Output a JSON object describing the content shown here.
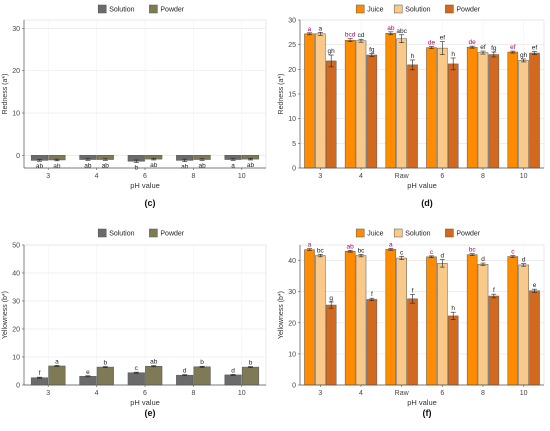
{
  "chart_data": [
    {
      "type": "bar",
      "panel_label": "(c)",
      "categories": [
        "3",
        "4",
        "6",
        "8",
        "10"
      ],
      "xlabel": "pH value",
      "ylabel": "Redness (a*)",
      "ylim": [
        -3,
        32
      ],
      "yticks": [
        0,
        10,
        20,
        30
      ],
      "grid": true,
      "legend_position": "top",
      "series": [
        {
          "name": "Solution",
          "color": "#6b6b6b",
          "values": [
            -1.2,
            -1.0,
            -1.4,
            -1.2,
            -1.0
          ],
          "errors": [
            0.2,
            0.2,
            0.3,
            0.3,
            0.2
          ],
          "letters": [
            "ab",
            "ab",
            "b",
            "ab",
            "a"
          ]
        },
        {
          "name": "Powder",
          "color": "#7d7a55",
          "values": [
            -1.1,
            -1.0,
            -0.9,
            -1.0,
            -0.9
          ],
          "errors": [
            0.2,
            0.2,
            0.2,
            0.2,
            0.2
          ],
          "letters": [
            "ab",
            "ab",
            "ab",
            "ab",
            "ab"
          ]
        }
      ]
    },
    {
      "type": "bar",
      "panel_label": "(d)",
      "categories": [
        "3",
        "4",
        "Raw",
        "6",
        "8",
        "10"
      ],
      "xlabel": "pH value",
      "ylabel": "Redness (a*)",
      "ylim": [
        0,
        30
      ],
      "yticks": [
        0,
        5,
        10,
        15,
        20,
        25,
        30
      ],
      "grid": true,
      "legend_position": "top",
      "series": [
        {
          "name": "Juice",
          "color": "#ff8c00",
          "values": [
            27.2,
            25.9,
            27.3,
            24.4,
            24.5,
            23.5
          ],
          "errors": [
            0.2,
            0.3,
            0.3,
            0.2,
            0.2,
            0.2
          ],
          "letters": [
            "a",
            "bcd",
            "ab",
            "de",
            "de",
            "ef"
          ]
        },
        {
          "name": "Solution",
          "color": "#f9c98a",
          "values": [
            27.2,
            25.8,
            26.2,
            24.3,
            23.4,
            21.8
          ],
          "errors": [
            0.3,
            0.3,
            0.8,
            1.3,
            0.3,
            0.3
          ],
          "letters": [
            "a",
            "cd",
            "abc",
            "ef",
            "ef",
            "gh"
          ]
        },
        {
          "name": "Powder",
          "color": "#d2691e",
          "values": [
            21.7,
            22.9,
            20.9,
            21.1,
            23.0,
            23.3
          ],
          "errors": [
            1.2,
            0.3,
            1.0,
            1.2,
            0.5,
            0.3
          ],
          "letters": [
            "gh",
            "fg",
            "h",
            "h",
            "fg",
            "ef"
          ]
        }
      ]
    },
    {
      "type": "bar",
      "panel_label": "(e)",
      "categories": [
        "3",
        "4",
        "6",
        "8",
        "10"
      ],
      "xlabel": "pH value",
      "ylabel": "Yellowness (b*)",
      "ylim": [
        0,
        50
      ],
      "yticks": [
        0,
        10,
        20,
        30,
        40,
        50
      ],
      "grid": true,
      "legend_position": "top",
      "series": [
        {
          "name": "Solution",
          "color": "#6b6b6b",
          "values": [
            2.6,
            3.1,
            4.4,
            3.5,
            3.6
          ],
          "errors": [
            0.2,
            0.2,
            0.2,
            0.2,
            0.2
          ],
          "letters": [
            "f",
            "e",
            "c",
            "d",
            "d"
          ]
        },
        {
          "name": "Powder",
          "color": "#7d7a55",
          "values": [
            6.8,
            6.4,
            6.7,
            6.5,
            6.4
          ],
          "errors": [
            0.2,
            0.2,
            0.2,
            0.2,
            0.2
          ],
          "letters": [
            "a",
            "b",
            "ab",
            "b",
            "b"
          ]
        }
      ]
    },
    {
      "type": "bar",
      "panel_label": "(f)",
      "categories": [
        "3",
        "4",
        "Raw",
        "6",
        "8",
        "10"
      ],
      "xlabel": "pH value",
      "ylabel": "Yellowness (b*)",
      "ylim": [
        0,
        45
      ],
      "yticks": [
        0,
        10,
        20,
        30,
        40
      ],
      "grid": true,
      "legend_position": "top",
      "series": [
        {
          "name": "Juice",
          "color": "#ff8c00",
          "values": [
            43.5,
            43.0,
            43.6,
            41.2,
            41.9,
            41.3
          ],
          "errors": [
            0.3,
            0.3,
            0.3,
            0.3,
            0.3,
            0.3
          ],
          "letters": [
            "a",
            "ab",
            "a",
            "c",
            "bc",
            "c"
          ]
        },
        {
          "name": "Solution",
          "color": "#f9c98a",
          "values": [
            41.6,
            41.6,
            40.8,
            39.1,
            38.8,
            38.6
          ],
          "errors": [
            0.4,
            0.4,
            0.5,
            1.2,
            0.4,
            0.4
          ],
          "letters": [
            "bc",
            "bc",
            "c",
            "d",
            "d",
            "d"
          ]
        },
        {
          "name": "Powder",
          "color": "#d2691e",
          "values": [
            25.7,
            27.5,
            27.7,
            22.2,
            28.6,
            30.3
          ],
          "errors": [
            1.0,
            0.4,
            1.4,
            1.2,
            0.6,
            0.5
          ],
          "letters": [
            "g",
            "f",
            "f",
            "h",
            "f",
            "e"
          ]
        }
      ]
    }
  ]
}
